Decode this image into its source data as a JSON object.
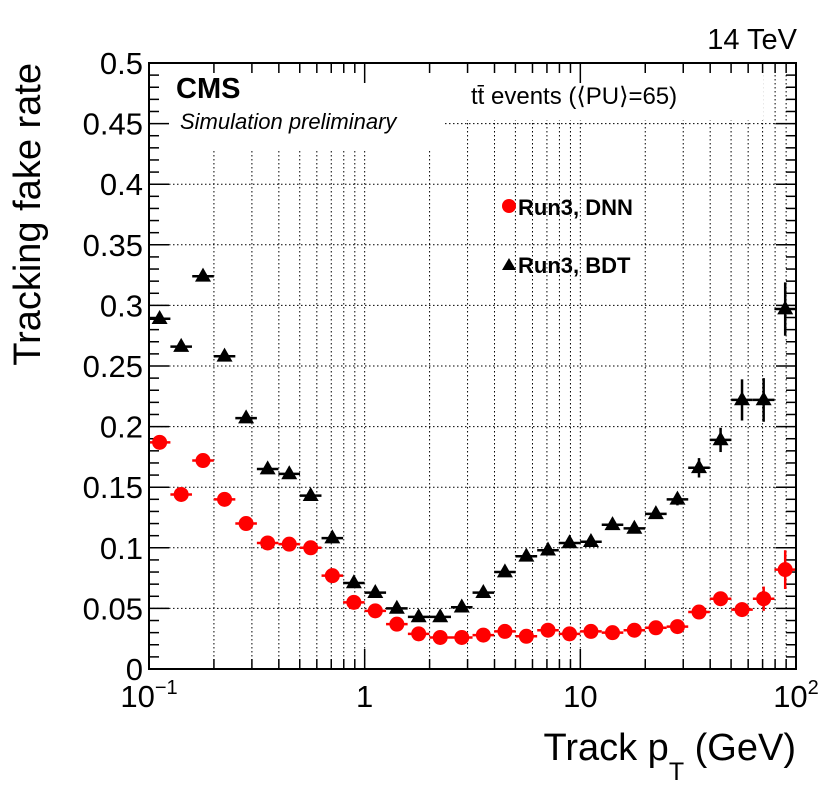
{
  "chart_data": {
    "type": "scatter",
    "title": "",
    "xlabel": "Track p",
    "xlabel_sub": "T",
    "xlabel_unit": " (GeV)",
    "ylabel": "Tracking fake rate",
    "xscale": "log",
    "xlim": [
      0.1,
      100
    ],
    "ylim": [
      0,
      0.5
    ],
    "grid": true,
    "legend_position": "upper-center",
    "x_ticks": [
      {
        "value": 0.1,
        "base": "10",
        "exp": "−1"
      },
      {
        "value": 1,
        "base": "1",
        "exp": ""
      },
      {
        "value": 10,
        "base": "10",
        "exp": ""
      },
      {
        "value": 100,
        "base": "10",
        "exp": "2"
      }
    ],
    "y_ticks": [
      "0",
      "0.05",
      "0.1",
      "0.15",
      "0.2",
      "0.25",
      "0.3",
      "0.35",
      "0.4",
      "0.45",
      "0.5"
    ],
    "bins_log10_start": -1,
    "bins_log10_width": 0.1,
    "x": [
      0.112,
      0.141,
      0.178,
      0.224,
      0.282,
      0.355,
      0.447,
      0.562,
      0.708,
      0.891,
      1.12,
      1.41,
      1.78,
      2.24,
      2.82,
      3.55,
      4.47,
      5.62,
      7.08,
      8.91,
      11.2,
      14.1,
      17.8,
      22.4,
      28.2,
      35.5,
      44.7,
      56.2,
      70.8,
      89.1
    ],
    "series": [
      {
        "name": "Run3, DNN",
        "marker": "circle",
        "color": "#ff0000",
        "values": [
          0.187,
          0.144,
          0.172,
          0.14,
          0.12,
          0.104,
          0.103,
          0.1,
          0.077,
          0.055,
          0.048,
          0.037,
          0.029,
          0.026,
          0.026,
          0.028,
          0.031,
          0.027,
          0.032,
          0.029,
          0.031,
          0.03,
          0.032,
          0.034,
          0.035,
          0.047,
          0.058,
          0.049,
          0.058,
          0.082
        ],
        "errors": [
          0.002,
          0.002,
          0.002,
          0.002,
          0.002,
          0.002,
          0.002,
          0.002,
          0.002,
          0.002,
          0.002,
          0.002,
          0.002,
          0.002,
          0.002,
          0.002,
          0.002,
          0.002,
          0.002,
          0.002,
          0.002,
          0.002,
          0.002,
          0.002,
          0.002,
          0.003,
          0.005,
          0.006,
          0.01,
          0.016
        ]
      },
      {
        "name": "Run3, BDT",
        "marker": "triangle",
        "color": "#000000",
        "values": [
          0.289,
          0.266,
          0.324,
          0.258,
          0.207,
          0.165,
          0.161,
          0.143,
          0.108,
          0.071,
          0.063,
          0.05,
          0.043,
          0.043,
          0.051,
          0.063,
          0.08,
          0.093,
          0.098,
          0.104,
          0.105,
          0.119,
          0.116,
          0.128,
          0.14,
          0.166,
          0.189,
          0.222,
          0.222,
          0.297
        ],
        "errors": [
          0.002,
          0.002,
          0.002,
          0.002,
          0.002,
          0.002,
          0.002,
          0.002,
          0.002,
          0.002,
          0.002,
          0.002,
          0.002,
          0.002,
          0.002,
          0.002,
          0.002,
          0.002,
          0.002,
          0.002,
          0.002,
          0.003,
          0.003,
          0.004,
          0.005,
          0.008,
          0.01,
          0.017,
          0.018,
          0.022
        ]
      }
    ],
    "annotations": {
      "experiment": "CMS",
      "status": "Simulation preliminary",
      "process": "tt̄ events (⟨PU⟩=65)",
      "energy": "14 TeV"
    }
  }
}
